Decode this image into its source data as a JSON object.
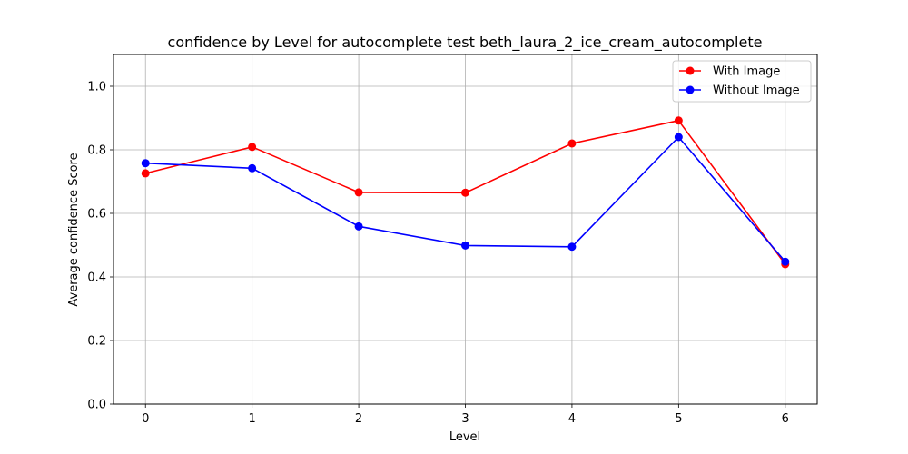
{
  "chart_data": {
    "type": "line",
    "title": "confidence by Level for autocomplete test beth_laura_2_ice_cream_autocomplete",
    "xlabel": "Level",
    "ylabel": "Average confidence Score",
    "x": [
      0,
      1,
      2,
      3,
      4,
      5,
      6
    ],
    "x_tick_labels": [
      "0",
      "1",
      "2",
      "3",
      "4",
      "5",
      "6"
    ],
    "xlim": [
      -0.3,
      6.3
    ],
    "ylim": [
      0.0,
      1.1
    ],
    "y_ticks": [
      0.0,
      0.2,
      0.4,
      0.6,
      0.8,
      1.0
    ],
    "y_tick_labels": [
      "0.0",
      "0.2",
      "0.4",
      "0.6",
      "0.8",
      "1.0"
    ],
    "grid": true,
    "legend_position": "top-right",
    "series": [
      {
        "name": "With Image",
        "color": "#ff0000",
        "values": [
          0.726,
          0.809,
          0.666,
          0.665,
          0.82,
          0.892,
          0.44
        ]
      },
      {
        "name": "Without Image",
        "color": "#0000ff",
        "values": [
          0.758,
          0.742,
          0.559,
          0.499,
          0.495,
          0.84,
          0.448
        ]
      }
    ]
  }
}
